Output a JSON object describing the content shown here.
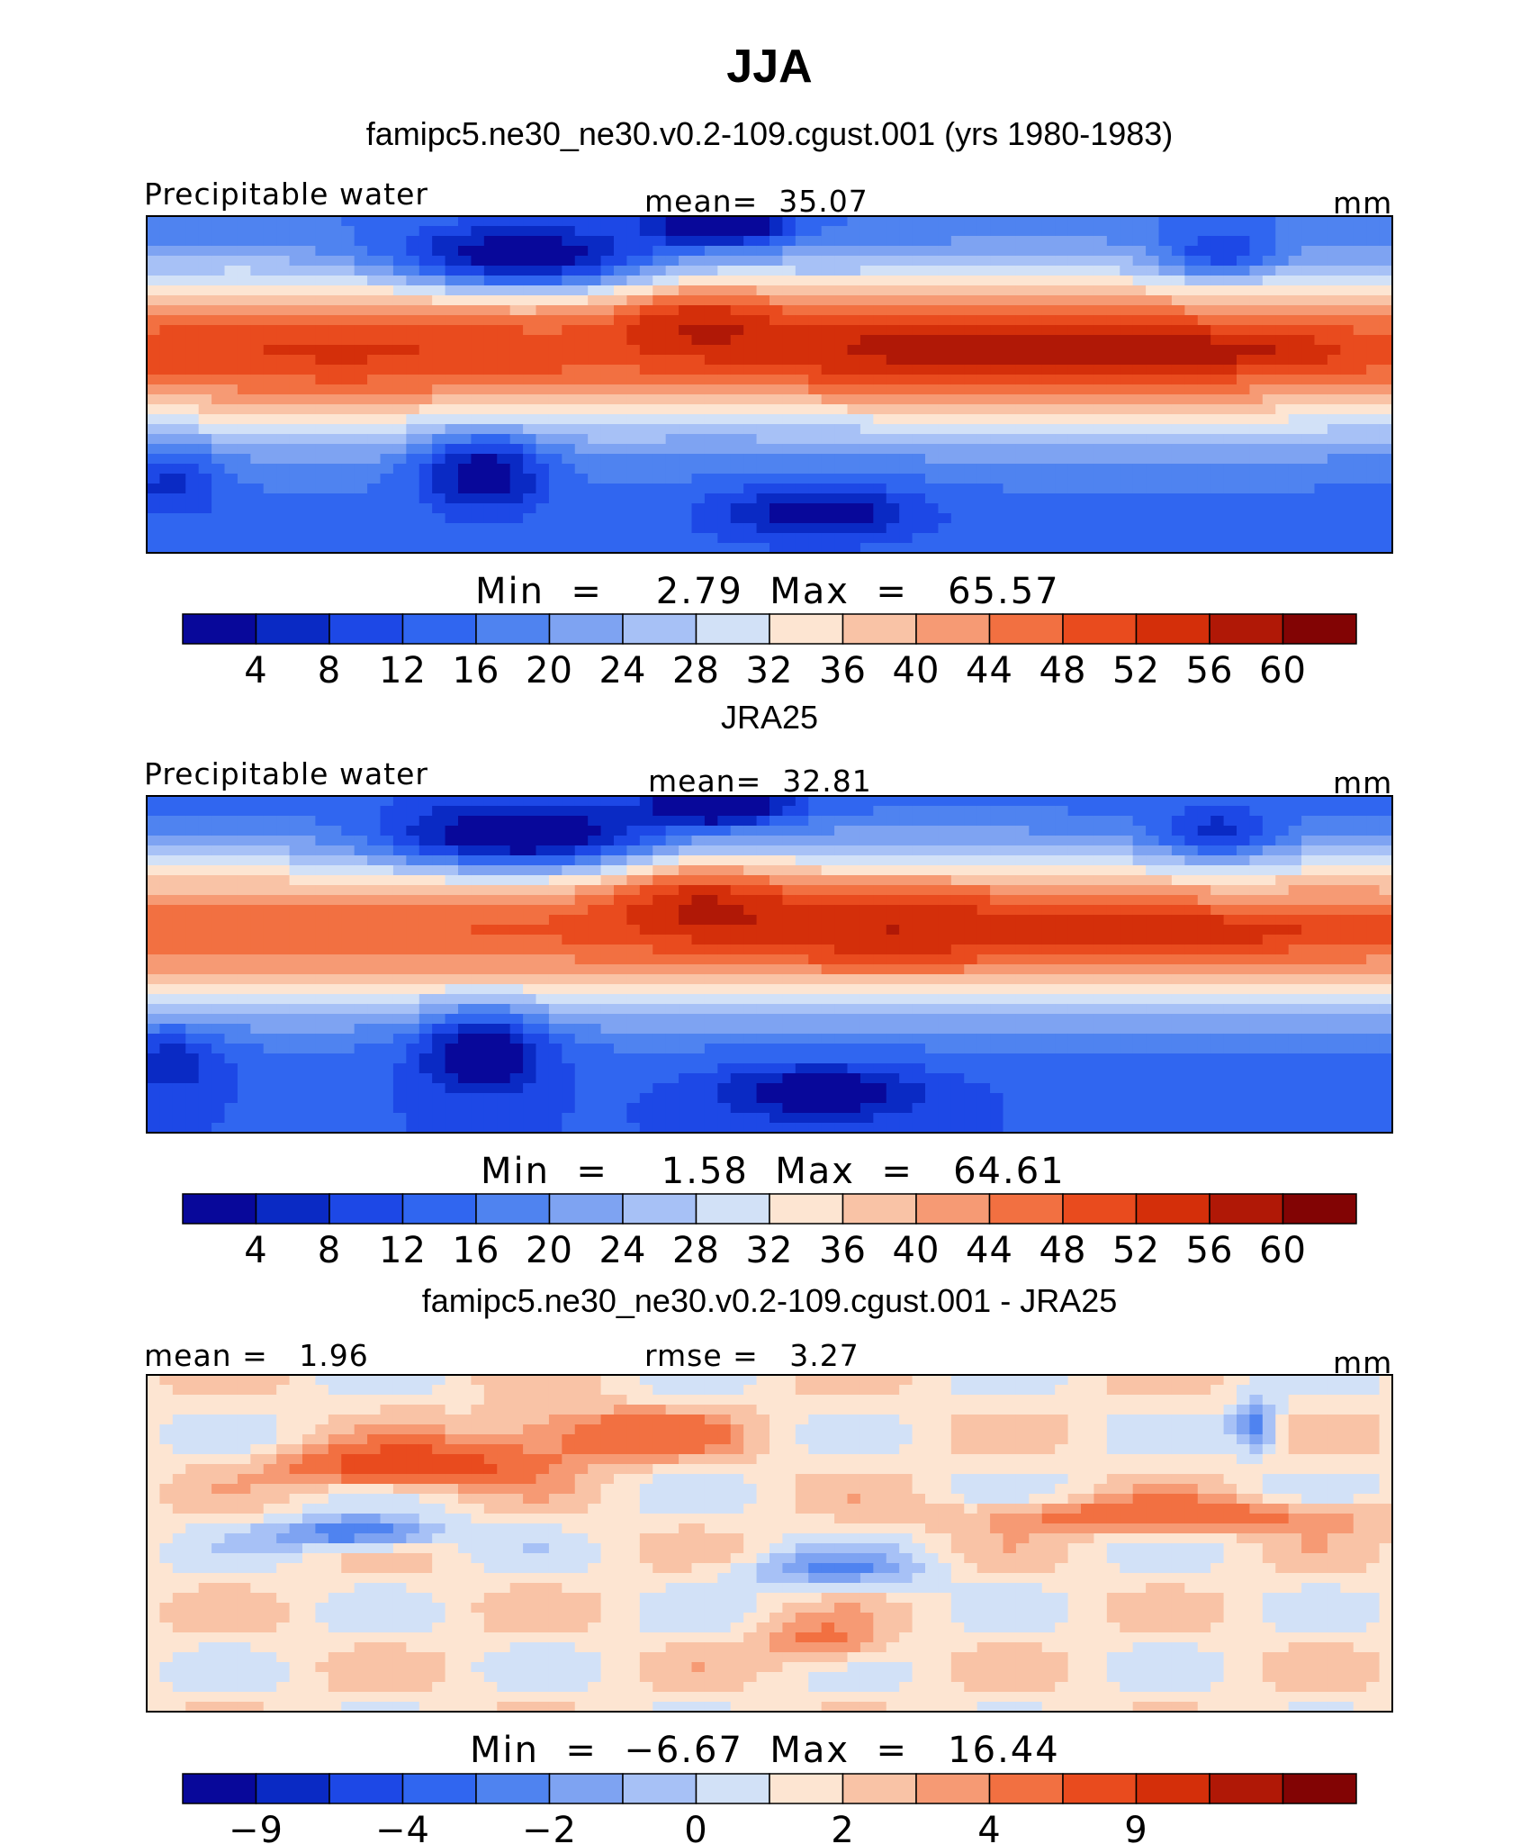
{
  "figure_title": "JJA",
  "palettes": {
    "abs": [
      "#08089a",
      "#0a2ac4",
      "#1d48e6",
      "#3066f0",
      "#4f83f0",
      "#7ea3f2",
      "#a7c1f6",
      "#d2e1f7",
      "#fde5d2",
      "#f9c3a6",
      "#f69a74",
      "#f27041",
      "#e94b1e",
      "#d42f0a",
      "#b01806",
      "#820404"
    ],
    "diff": [
      "#08089a",
      "#0a2ac4",
      "#1d48e6",
      "#3066f0",
      "#4f83f0",
      "#7ea3f2",
      "#a7c1f6",
      "#d2e1f7",
      "#fde5d2",
      "#f9c3a6",
      "#f69a74",
      "#f27041",
      "#e94b1e",
      "#d42f0a",
      "#b01806",
      "#820404"
    ]
  },
  "chart_data": [
    {
      "type": "heatmap",
      "title": "famipc5.ne30_ne30.v0.2-109.cgust.001 (yrs 1980-1983)",
      "variable": "Precipitable water",
      "mean_label": "mean=",
      "mean": "35.07",
      "units": "mm",
      "min_label": "Min  =",
      "min": "2.79",
      "max_label": "Max  =",
      "max": "65.57",
      "levels": [
        "4",
        "8",
        "12",
        "16",
        "20",
        "24",
        "28",
        "32",
        "36",
        "40",
        "44",
        "48",
        "52",
        "56",
        "60"
      ],
      "field": "model"
    },
    {
      "type": "heatmap",
      "title": "JRA25",
      "variable": "Precipitable water",
      "mean_label": "mean=",
      "mean": "32.81",
      "units": "mm",
      "min_label": "Min  =",
      "min": "1.58",
      "max_label": "Max  =",
      "max": "64.61",
      "levels": [
        "4",
        "8",
        "12",
        "16",
        "20",
        "24",
        "28",
        "32",
        "36",
        "40",
        "44",
        "48",
        "52",
        "56",
        "60"
      ],
      "field": "obs"
    },
    {
      "type": "heatmap",
      "title": "famipc5.ne30_ne30.v0.2-109.cgust.001 - JRA25",
      "mean_label": "mean =",
      "mean": "1.96",
      "rmse_label": "rmse =",
      "rmse": "3.27",
      "units": "mm",
      "min_label": "Min  =",
      "min": "−6.67",
      "max_label": "Max  =",
      "max": "16.44",
      "label_bars": [
        1,
        3,
        5,
        7,
        9,
        11,
        13
      ],
      "levels": [
        "−9",
        "−4",
        "−2",
        "0",
        "2",
        "4",
        "9"
      ],
      "field": "diff"
    }
  ]
}
